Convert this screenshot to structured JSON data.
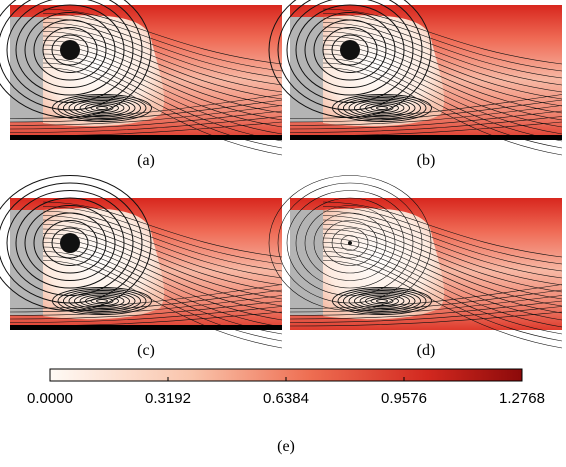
{
  "panels": [
    {
      "label": "(a)"
    },
    {
      "label": "(b)"
    },
    {
      "label": "(c)"
    },
    {
      "label": "(d)"
    }
  ],
  "colorbar": {
    "lim": [
      0,
      1.2768
    ],
    "ticks": [
      {
        "value": 0,
        "label": "0.0000"
      },
      {
        "value": 0.3192,
        "label": "0.3192"
      },
      {
        "value": 0.6384,
        "label": "0.6384"
      },
      {
        "value": 0.9576,
        "label": "0.9576"
      },
      {
        "value": 1.2768,
        "label": "1.2768"
      }
    ],
    "label": "(e)"
  }
}
